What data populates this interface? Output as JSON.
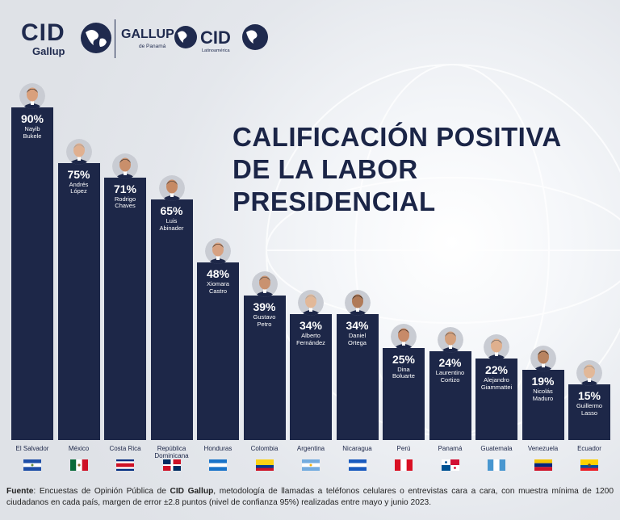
{
  "brand": {
    "cid_gallup_top": "CID",
    "cid_gallup_bottom": "Gallup",
    "gallup_top": "GALLUP",
    "gallup_bottom": "de Panamá",
    "cid_latino_top": "CID",
    "cid_latino_bottom": "Latinoamérica"
  },
  "colors": {
    "bar": "#1d2748",
    "title": "#1b2547"
  },
  "chart_data": {
    "type": "bar",
    "title_line1": "CALIFICACIÓN POSITIVA",
    "title_line2": "DE LA LABOR PRESIDENCIAL",
    "ylim": [
      0,
      100
    ],
    "categories": [
      "El Salvador",
      "México",
      "Costa Rica",
      "República Dominicana",
      "Honduras",
      "Colombia",
      "Argentina",
      "Nicaragua",
      "Perú",
      "Panamá",
      "Guatemala",
      "Venezuela",
      "Ecuador"
    ],
    "values": [
      90,
      75,
      71,
      65,
      48,
      39,
      34,
      34,
      25,
      24,
      22,
      19,
      15
    ],
    "value_labels": [
      "90%",
      "75%",
      "71%",
      "65%",
      "48%",
      "39%",
      "34%",
      "34%",
      "25%",
      "24%",
      "22%",
      "19%",
      "15%"
    ],
    "presidents": [
      [
        "Nayib",
        "Bukele"
      ],
      [
        "Andrés",
        "López"
      ],
      [
        "Rodrigo",
        "Chaves"
      ],
      [
        "Luis",
        "Abinader"
      ],
      [
        "Xiomara",
        "Castro"
      ],
      [
        "Gustavo",
        "Petro"
      ],
      [
        "Alberto",
        "Fernández"
      ],
      [
        "Daniel",
        "Ortega"
      ],
      [
        "Dina",
        "Boluarte"
      ],
      [
        "Laurentino",
        "Cortizo"
      ],
      [
        "Alejandro",
        "Giammattei"
      ],
      [
        "Nicolás",
        "Maduro"
      ],
      [
        "Guillermo",
        "Lasso"
      ]
    ],
    "flag_icons": [
      "flag-el-salvador",
      "flag-mexico",
      "flag-costa-rica",
      "flag-dominican-republic",
      "flag-honduras",
      "flag-colombia",
      "flag-argentina",
      "flag-nicaragua",
      "flag-peru",
      "flag-panama",
      "flag-guatemala",
      "flag-venezuela",
      "flag-ecuador"
    ]
  },
  "source": {
    "label": "Fuente",
    "text_a": ": Encuestas de Opinión Pública de ",
    "bold_org": "CID Gallup",
    "text_b": ", metodología de llamadas a teléfonos celulares o entrevistas cara a cara, con muestra mínima de 1200 ciudadanos en cada país, margen de error ±2.8 puntos (nivel de confianza 95%) realizadas entre mayo y junio 2023."
  }
}
